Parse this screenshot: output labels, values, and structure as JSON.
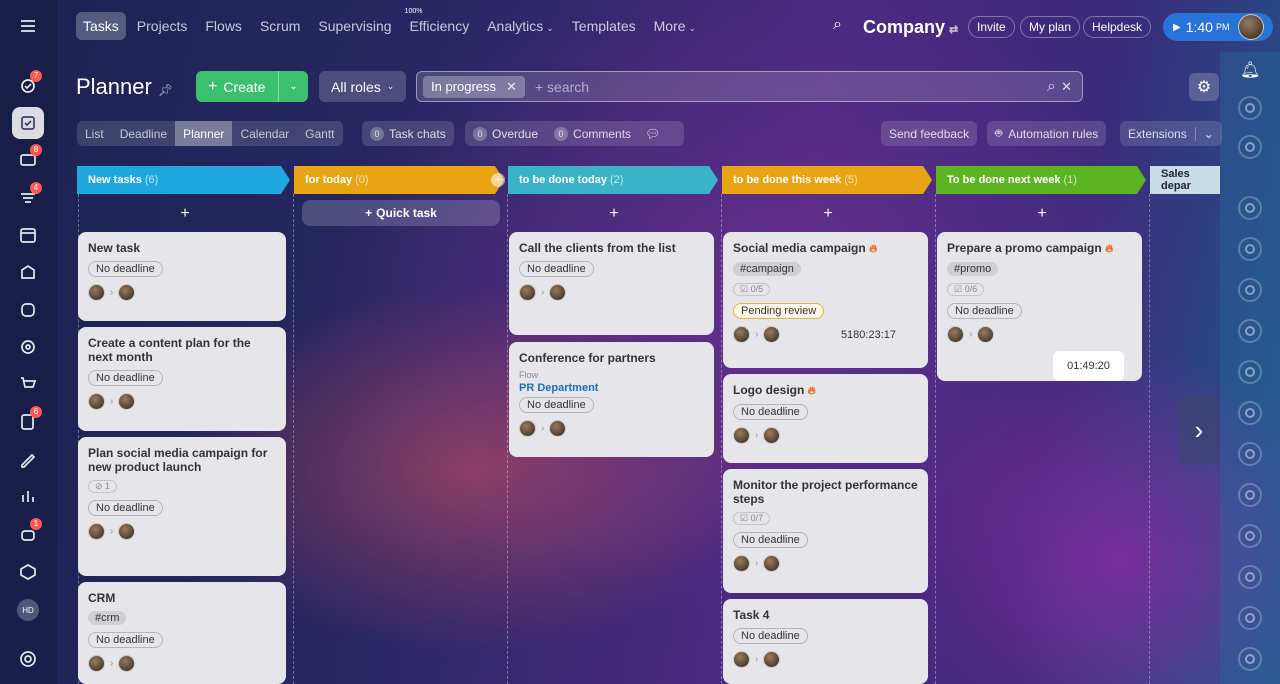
{
  "top_nav": {
    "items": [
      "Tasks",
      "Projects",
      "Flows",
      "Scrum",
      "Supervising",
      "Efficiency",
      "Analytics",
      "Templates",
      "More"
    ],
    "efficiency_value": "100%",
    "company": "Company",
    "invite": "Invite",
    "my_plan": "My plan",
    "helpdesk": "Helpdesk",
    "time": "1:40",
    "ampm": "PM"
  },
  "sidebar_badges": {
    "b1": "7",
    "b2": "8",
    "b3": "4",
    "b4": "6",
    "b5": "1",
    "user_initials": "HD"
  },
  "page": {
    "title": "Planner",
    "create": "Create",
    "roles": "All roles",
    "filter_chip": "In progress",
    "search_placeholder": "+ search"
  },
  "views": [
    "List",
    "Deadline",
    "Planner",
    "Calendar",
    "Gantt"
  ],
  "counters": {
    "task_chats_count": "0",
    "task_chats": "Task chats",
    "overdue_count": "0",
    "overdue": "Overdue",
    "comments_count": "0",
    "comments": "Comments"
  },
  "toolbar": {
    "send_feedback": "Send feedback",
    "automation": "Automation rules",
    "extensions": "Extensions"
  },
  "stages": [
    {
      "name": "New tasks",
      "count": "(6)",
      "color": "#1fa7e0"
    },
    {
      "name": "for today",
      "count": "(0)",
      "color": "#e8a413"
    },
    {
      "name": "to be done today",
      "count": "(2)",
      "color": "#3ab2c7"
    },
    {
      "name": "to be done this week",
      "count": "(5)",
      "color": "#e8a413"
    },
    {
      "name": "To be done next week",
      "count": "(1)",
      "color": "#5cb422"
    },
    {
      "name": "Sales depar",
      "count": "",
      "color": "#c8dde6"
    }
  ],
  "quick_task": "Quick task",
  "cards": {
    "c1": {
      "title": "New task",
      "deadline": "No deadline"
    },
    "c2": {
      "title": "Create a content plan for the next month",
      "deadline": "No deadline"
    },
    "c3": {
      "title": "Plan social media campaign for new product launch",
      "check": "1",
      "deadline": "No deadline"
    },
    "c4": {
      "title": "CRM",
      "tag": "#crm",
      "deadline": "No deadline"
    },
    "c5": {
      "title": "Call the clients from the list",
      "deadline": "No deadline"
    },
    "c6": {
      "title": "Conference for partners",
      "flow_label": "Flow",
      "flow": "PR Department",
      "deadline": "No deadline"
    },
    "c7": {
      "title": "Social media campaign",
      "tag": "#campaign",
      "check": "0/5",
      "status": "Pending review",
      "time": "5180:23:17"
    },
    "c8": {
      "title": "Logo design",
      "deadline": "No deadline"
    },
    "c9": {
      "title": "Monitor the project performance steps",
      "check": "0/7",
      "deadline": "No deadline"
    },
    "c10": {
      "title": "Task 4",
      "deadline": "No deadline"
    },
    "c11": {
      "title": "Prepare a promo campaign",
      "tag": "#promo",
      "check": "0/6",
      "deadline": "No deadline"
    }
  },
  "timer": "01:49:20"
}
